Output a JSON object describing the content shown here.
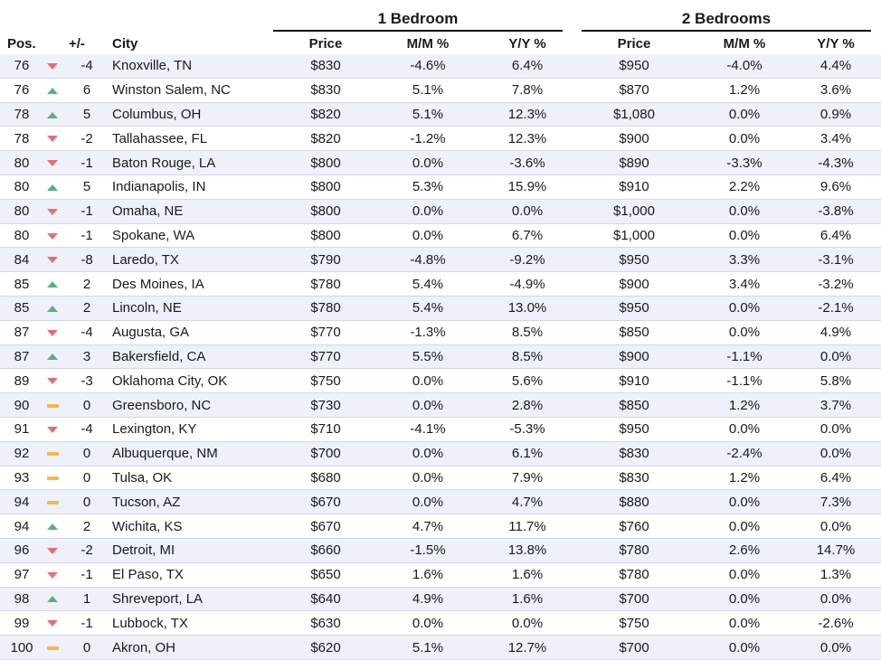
{
  "groups": {
    "one_bedroom": "1 Bedroom",
    "two_bedrooms": "2 Bedrooms"
  },
  "columns": {
    "pos": "Pos.",
    "change": "+/-",
    "city": "City",
    "price1": "Price",
    "mm1": "M/M %",
    "yy1": "Y/Y %",
    "price2": "Price",
    "mm2": "M/M %",
    "yy2": "Y/Y %"
  },
  "indicator_colors": {
    "down": "#e36f6f",
    "up": "#5bb07e",
    "flat": "#f2b84b"
  },
  "rows": [
    {
      "pos": "76",
      "dir": "down",
      "change": "-4",
      "city": "Knoxville, TN",
      "p1": "$830",
      "mm1": "-4.6%",
      "yy1": "6.4%",
      "p2": "$950",
      "mm2": "-4.0%",
      "yy2": "4.4%"
    },
    {
      "pos": "76",
      "dir": "up",
      "change": "6",
      "city": "Winston Salem, NC",
      "p1": "$830",
      "mm1": "5.1%",
      "yy1": "7.8%",
      "p2": "$870",
      "mm2": "1.2%",
      "yy2": "3.6%"
    },
    {
      "pos": "78",
      "dir": "up",
      "change": "5",
      "city": "Columbus, OH",
      "p1": "$820",
      "mm1": "5.1%",
      "yy1": "12.3%",
      "p2": "$1,080",
      "mm2": "0.0%",
      "yy2": "0.9%"
    },
    {
      "pos": "78",
      "dir": "down",
      "change": "-2",
      "city": "Tallahassee, FL",
      "p1": "$820",
      "mm1": "-1.2%",
      "yy1": "12.3%",
      "p2": "$900",
      "mm2": "0.0%",
      "yy2": "3.4%"
    },
    {
      "pos": "80",
      "dir": "down",
      "change": "-1",
      "city": "Baton Rouge, LA",
      "p1": "$800",
      "mm1": "0.0%",
      "yy1": "-3.6%",
      "p2": "$890",
      "mm2": "-3.3%",
      "yy2": "-4.3%"
    },
    {
      "pos": "80",
      "dir": "up",
      "change": "5",
      "city": "Indianapolis, IN",
      "p1": "$800",
      "mm1": "5.3%",
      "yy1": "15.9%",
      "p2": "$910",
      "mm2": "2.2%",
      "yy2": "9.6%"
    },
    {
      "pos": "80",
      "dir": "down",
      "change": "-1",
      "city": "Omaha, NE",
      "p1": "$800",
      "mm1": "0.0%",
      "yy1": "0.0%",
      "p2": "$1,000",
      "mm2": "0.0%",
      "yy2": "-3.8%"
    },
    {
      "pos": "80",
      "dir": "down",
      "change": "-1",
      "city": "Spokane, WA",
      "p1": "$800",
      "mm1": "0.0%",
      "yy1": "6.7%",
      "p2": "$1,000",
      "mm2": "0.0%",
      "yy2": "6.4%"
    },
    {
      "pos": "84",
      "dir": "down",
      "change": "-8",
      "city": "Laredo, TX",
      "p1": "$790",
      "mm1": "-4.8%",
      "yy1": "-9.2%",
      "p2": "$950",
      "mm2": "3.3%",
      "yy2": "-3.1%"
    },
    {
      "pos": "85",
      "dir": "up",
      "change": "2",
      "city": "Des Moines, IA",
      "p1": "$780",
      "mm1": "5.4%",
      "yy1": "-4.9%",
      "p2": "$900",
      "mm2": "3.4%",
      "yy2": "-3.2%"
    },
    {
      "pos": "85",
      "dir": "up",
      "change": "2",
      "city": "Lincoln, NE",
      "p1": "$780",
      "mm1": "5.4%",
      "yy1": "13.0%",
      "p2": "$950",
      "mm2": "0.0%",
      "yy2": "-2.1%"
    },
    {
      "pos": "87",
      "dir": "down",
      "change": "-4",
      "city": "Augusta, GA",
      "p1": "$770",
      "mm1": "-1.3%",
      "yy1": "8.5%",
      "p2": "$850",
      "mm2": "0.0%",
      "yy2": "4.9%"
    },
    {
      "pos": "87",
      "dir": "up",
      "change": "3",
      "city": "Bakersfield, CA",
      "p1": "$770",
      "mm1": "5.5%",
      "yy1": "8.5%",
      "p2": "$900",
      "mm2": "-1.1%",
      "yy2": "0.0%"
    },
    {
      "pos": "89",
      "dir": "down",
      "change": "-3",
      "city": "Oklahoma City, OK",
      "p1": "$750",
      "mm1": "0.0%",
      "yy1": "5.6%",
      "p2": "$910",
      "mm2": "-1.1%",
      "yy2": "5.8%"
    },
    {
      "pos": "90",
      "dir": "flat",
      "change": "0",
      "city": "Greensboro, NC",
      "p1": "$730",
      "mm1": "0.0%",
      "yy1": "2.8%",
      "p2": "$850",
      "mm2": "1.2%",
      "yy2": "3.7%"
    },
    {
      "pos": "91",
      "dir": "down",
      "change": "-4",
      "city": "Lexington, KY",
      "p1": "$710",
      "mm1": "-4.1%",
      "yy1": "-5.3%",
      "p2": "$950",
      "mm2": "0.0%",
      "yy2": "0.0%"
    },
    {
      "pos": "92",
      "dir": "flat",
      "change": "0",
      "city": "Albuquerque, NM",
      "p1": "$700",
      "mm1": "0.0%",
      "yy1": "6.1%",
      "p2": "$830",
      "mm2": "-2.4%",
      "yy2": "0.0%"
    },
    {
      "pos": "93",
      "dir": "flat",
      "change": "0",
      "city": "Tulsa, OK",
      "p1": "$680",
      "mm1": "0.0%",
      "yy1": "7.9%",
      "p2": "$830",
      "mm2": "1.2%",
      "yy2": "6.4%"
    },
    {
      "pos": "94",
      "dir": "flat",
      "change": "0",
      "city": "Tucson, AZ",
      "p1": "$670",
      "mm1": "0.0%",
      "yy1": "4.7%",
      "p2": "$880",
      "mm2": "0.0%",
      "yy2": "7.3%"
    },
    {
      "pos": "94",
      "dir": "up",
      "change": "2",
      "city": "Wichita, KS",
      "p1": "$670",
      "mm1": "4.7%",
      "yy1": "11.7%",
      "p2": "$760",
      "mm2": "0.0%",
      "yy2": "0.0%"
    },
    {
      "pos": "96",
      "dir": "down",
      "change": "-2",
      "city": "Detroit, MI",
      "p1": "$660",
      "mm1": "-1.5%",
      "yy1": "13.8%",
      "p2": "$780",
      "mm2": "2.6%",
      "yy2": "14.7%"
    },
    {
      "pos": "97",
      "dir": "down",
      "change": "-1",
      "city": "El Paso, TX",
      "p1": "$650",
      "mm1": "1.6%",
      "yy1": "1.6%",
      "p2": "$780",
      "mm2": "0.0%",
      "yy2": "1.3%"
    },
    {
      "pos": "98",
      "dir": "up",
      "change": "1",
      "city": "Shreveport, LA",
      "p1": "$640",
      "mm1": "4.9%",
      "yy1": "1.6%",
      "p2": "$700",
      "mm2": "0.0%",
      "yy2": "0.0%"
    },
    {
      "pos": "99",
      "dir": "down",
      "change": "-1",
      "city": "Lubbock, TX",
      "p1": "$630",
      "mm1": "0.0%",
      "yy1": "0.0%",
      "p2": "$750",
      "mm2": "0.0%",
      "yy2": "-2.6%"
    },
    {
      "pos": "100",
      "dir": "flat",
      "change": "0",
      "city": "Akron, OH",
      "p1": "$620",
      "mm1": "5.1%",
      "yy1": "12.7%",
      "p2": "$700",
      "mm2": "0.0%",
      "yy2": "0.0%"
    }
  ]
}
